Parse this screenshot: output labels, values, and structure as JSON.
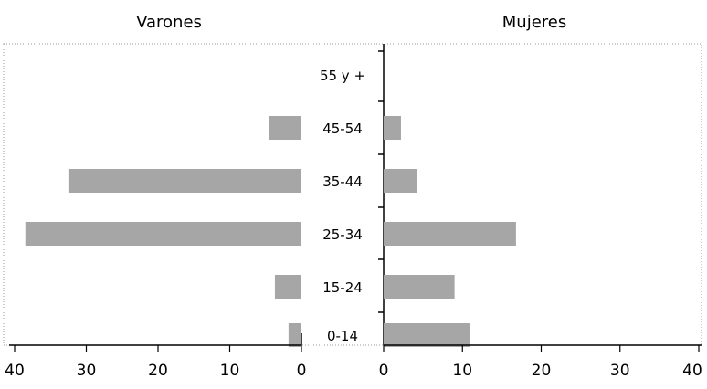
{
  "chart_data": [
    {
      "type": "bar",
      "orientation": "horizontal",
      "direction": "right-to-left",
      "title": "Varones",
      "categories": [
        "0-14",
        "15-24",
        "25-34",
        "35-44",
        "45-54",
        "55 y +"
      ],
      "values": [
        1.8,
        3.7,
        38.5,
        32.5,
        4.5,
        0
      ],
      "xticks": [
        40,
        30,
        20,
        10,
        0
      ],
      "xlim": [
        0,
        40
      ],
      "grid": false,
      "color": "#a6a6a6"
    },
    {
      "type": "bar",
      "orientation": "horizontal",
      "direction": "left-to-right",
      "title": "Mujeres",
      "categories": [
        "0-14",
        "15-24",
        "25-34",
        "35-44",
        "45-54",
        "55 y +"
      ],
      "values": [
        11,
        9,
        16.8,
        4.2,
        2.2,
        0
      ],
      "xticks": [
        0,
        10,
        20,
        30,
        40
      ],
      "xlim": [
        0,
        40
      ],
      "grid": false,
      "color": "#a6a6a6"
    }
  ]
}
